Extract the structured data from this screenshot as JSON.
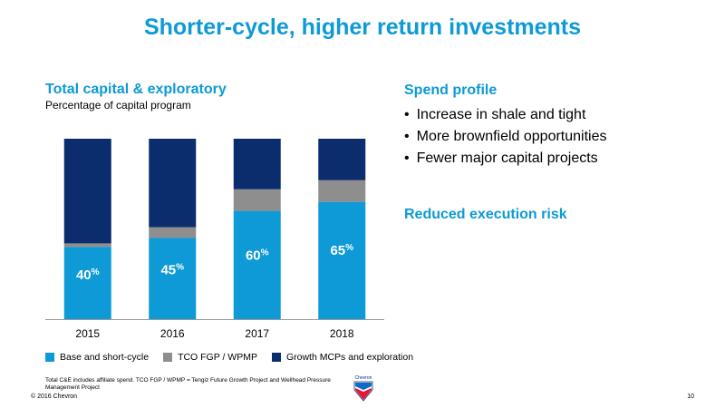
{
  "title": "Shorter-cycle, higher return investments",
  "left": {
    "heading": "Total capital & exploratory",
    "subheading": "Percentage of capital program"
  },
  "right": {
    "heading": "Spend profile",
    "bullets": [
      "Increase in shale and tight",
      "More brownfield opportunities",
      "Fewer major capital projects"
    ],
    "risk_heading": "Reduced execution risk"
  },
  "chart_data": {
    "type": "bar",
    "stacked": true,
    "categories": [
      "2015",
      "2016",
      "2017",
      "2018"
    ],
    "series": [
      {
        "name": "Base and short-cycle",
        "values": [
          40,
          45,
          60,
          65
        ],
        "color": "#0d9ad6"
      },
      {
        "name": "TCO FGP / WPMP",
        "values": [
          2,
          6,
          12,
          12
        ],
        "color": "#8e8e8e"
      },
      {
        "name": "Growth MCPs and exploration",
        "values": [
          58,
          49,
          28,
          23
        ],
        "color": "#0b2d6e"
      }
    ],
    "data_labels": [
      "40",
      "45",
      "60",
      "65"
    ],
    "data_label_suffix": "%",
    "ylim": [
      0,
      100
    ],
    "grid": false,
    "legend_position": "bottom"
  },
  "footnote": "Total C&E includes affiliate spend. TCO FGP / WPMP = Tengiz Future Growth Project and Wellhead Pressure Management Project",
  "copyright": "© 2016 Chevron",
  "page_number": "10",
  "logo": {
    "text": "Chevron"
  }
}
